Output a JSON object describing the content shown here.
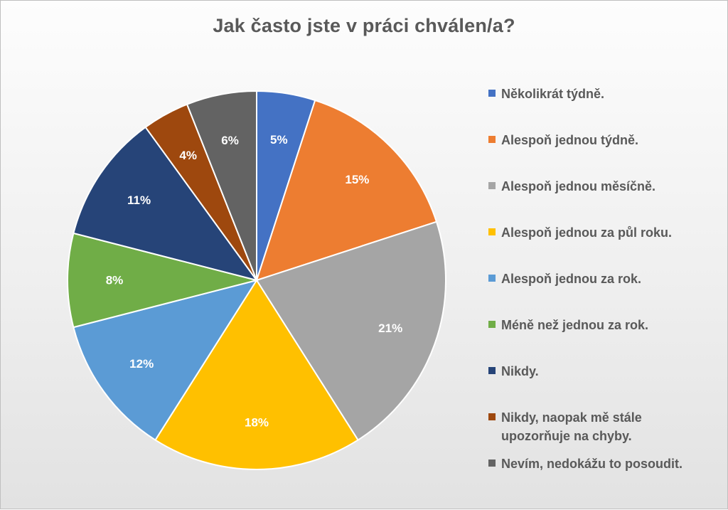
{
  "chart_data": {
    "type": "pie",
    "title": "Jak často jste v práci chválen/a?",
    "start_angle_deg": 0,
    "direction": "clockwise",
    "label_format": "percent",
    "legend_position": "right",
    "slices": [
      {
        "label": "Několikrát týdně.",
        "value": 5,
        "display": "5%",
        "color": "#4472C4",
        "label_color": "#FFFFFF"
      },
      {
        "label": "Alespoň jednou týdně.",
        "value": 15,
        "display": "15%",
        "color": "#ED7D31",
        "label_color": "#FFFFFF"
      },
      {
        "label": "Alespoň jednou měsíčně.",
        "value": 21,
        "display": "21%",
        "color": "#A5A5A5",
        "label_color": "#FFFFFF"
      },
      {
        "label": "Alespoň jednou za půl roku.",
        "value": 18,
        "display": "18%",
        "color": "#FFC000",
        "label_color": "#FFFFFF"
      },
      {
        "label": "Alespoň jednou za rok.",
        "value": 12,
        "display": "12%",
        "color": "#5B9BD5",
        "label_color": "#FFFFFF"
      },
      {
        "label": "Méně než jednou za rok.",
        "value": 8,
        "display": "8%",
        "color": "#70AD47",
        "label_color": "#FFFFFF"
      },
      {
        "label": "Nikdy.",
        "value": 11,
        "display": "11%",
        "color": "#264478",
        "label_color": "#FFFFFF"
      },
      {
        "label": "Nikdy, naopak mě stále\nupozorňuje na chyby.",
        "value": 4,
        "display": "4%",
        "color": "#9E480E",
        "label_color": "#FFFFFF"
      },
      {
        "label": "Nevím, nedokážu to posoudit.",
        "value": 6,
        "display": "6%",
        "color": "#636363",
        "label_color": "#FFFFFF"
      }
    ]
  }
}
